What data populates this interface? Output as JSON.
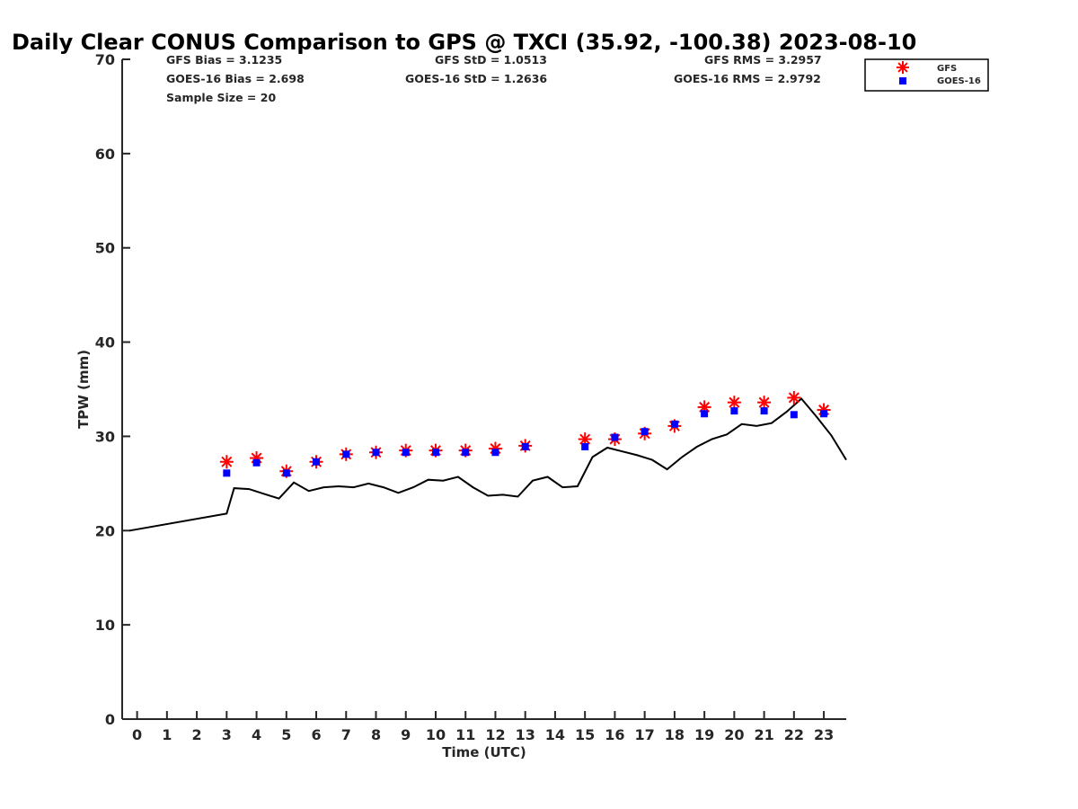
{
  "chart_data": {
    "type": "scatter",
    "title": "Daily Clear CONUS Comparison to GPS @ TXCI (35.92, -100.38) 2023-08-10",
    "xlabel": "Time (UTC)",
    "ylabel": "TPW (mm)",
    "xlim": [
      -0.5,
      23.75
    ],
    "ylim": [
      0,
      70
    ],
    "xticks": [
      "0",
      "1",
      "2",
      "3",
      "4",
      "5",
      "6",
      "7",
      "8",
      "9",
      "10",
      "11",
      "12",
      "13",
      "14",
      "15",
      "16",
      "17",
      "18",
      "19",
      "20",
      "21",
      "22",
      "23"
    ],
    "yticks": [
      "0",
      "10",
      "20",
      "30",
      "40",
      "50",
      "60",
      "70"
    ],
    "grid": false,
    "legend_position": "top-right",
    "stats": [
      "GFS Bias = 3.1235",
      "GFS StD = 1.0513",
      "GFS RMS = 3.2957",
      "GOES-16 Bias = 2.698",
      "GOES-16 StD = 1.2636",
      "GOES-16 RMS = 2.9792",
      "Sample Size = 20"
    ],
    "series": [
      {
        "name": "GFS",
        "marker": "asterisk",
        "color": "#ff0000",
        "x": [
          3,
          4,
          5,
          6,
          7,
          8,
          9,
          10,
          11,
          12,
          13,
          15,
          16,
          17,
          18,
          19,
          20,
          21,
          22,
          23
        ],
        "y": [
          27.3,
          27.7,
          26.3,
          27.3,
          28.1,
          28.3,
          28.5,
          28.5,
          28.5,
          28.7,
          29.0,
          29.7,
          29.7,
          30.3,
          31.1,
          33.1,
          33.6,
          33.6,
          34.1,
          32.8
        ]
      },
      {
        "name": "GOES-16",
        "marker": "square",
        "color": "#0000ff",
        "x": [
          3,
          4,
          5,
          6,
          7,
          8,
          9,
          10,
          11,
          12,
          13,
          15,
          16,
          17,
          18,
          19,
          20,
          21,
          22,
          23
        ],
        "y": [
          26.1,
          27.2,
          26.1,
          27.3,
          28.1,
          28.3,
          28.3,
          28.3,
          28.3,
          28.3,
          28.9,
          28.9,
          29.9,
          30.5,
          31.3,
          32.4,
          32.7,
          32.7,
          32.3,
          32.4
        ]
      },
      {
        "marker": "line",
        "color": "#000000",
        "x": [
          -0.25,
          3.0,
          3.25,
          3.75,
          4.25,
          4.75,
          5.25,
          5.75,
          6.25,
          6.75,
          7.25,
          7.75,
          8.25,
          8.75,
          9.25,
          9.75,
          10.25,
          10.75,
          11.25,
          11.75,
          12.25,
          12.75,
          13.25,
          13.75,
          14.25,
          14.75,
          15.25,
          15.75,
          16.25,
          16.75,
          17.25,
          17.75,
          18.25,
          18.75,
          19.25,
          19.75,
          20.25,
          20.75,
          21.25,
          21.75,
          22.25,
          22.75,
          23.25,
          23.75
        ],
        "y": [
          20.0,
          21.8,
          24.5,
          24.4,
          23.9,
          23.4,
          25.1,
          24.2,
          24.6,
          24.7,
          24.6,
          25.0,
          24.6,
          24.0,
          24.6,
          25.4,
          25.3,
          25.7,
          24.6,
          23.7,
          23.8,
          23.6,
          25.3,
          25.7,
          24.6,
          24.7,
          27.8,
          28.8,
          28.4,
          28.0,
          27.5,
          26.5,
          27.8,
          28.9,
          29.7,
          30.2,
          31.3,
          31.1,
          31.4,
          32.6,
          34.0,
          32.1,
          30.1,
          27.5
        ]
      }
    ]
  }
}
